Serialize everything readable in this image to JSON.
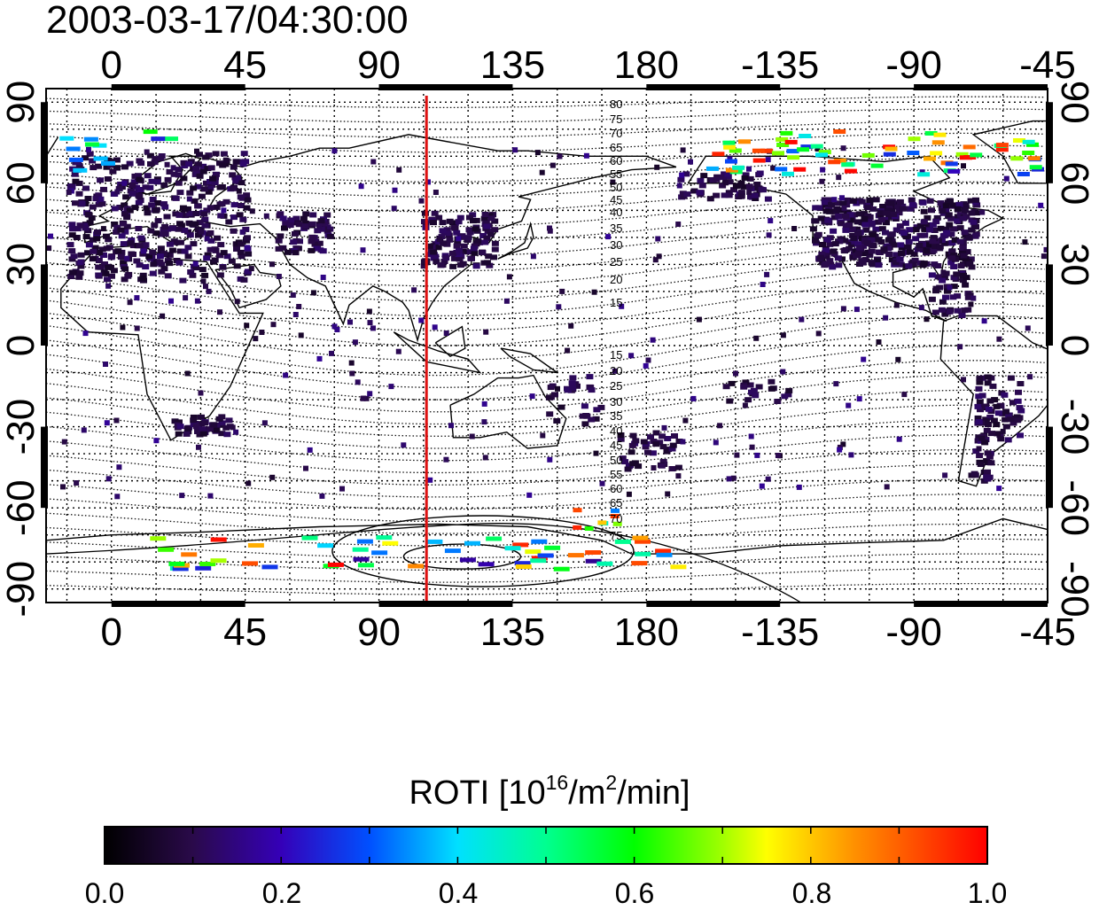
{
  "title": "2003-03-17/04:30:00",
  "axes": {
    "lon_labels": [
      "0",
      "45",
      "90",
      "135",
      "180",
      "-135",
      "-90",
      "-45"
    ],
    "lat_labels": [
      "90",
      "60",
      "30",
      "0",
      "-30",
      "-60",
      "-90"
    ],
    "lon_range": [
      -22,
      315
    ],
    "lat_range": [
      -95,
      95
    ]
  },
  "marker": {
    "type": "meridian",
    "longitude": 106,
    "color": "#dd1111"
  },
  "contours": {
    "north_labels": [
      "80",
      "75",
      "70",
      "65",
      "60",
      "55",
      "50",
      "45",
      "40",
      "35",
      "30",
      "25",
      "20",
      "15"
    ],
    "south_labels": [
      "15",
      "20",
      "25",
      "30",
      "35",
      "40",
      "45",
      "50",
      "55",
      "60",
      "65",
      "70",
      "75"
    ]
  },
  "colorbar": {
    "title_prefix": "ROTI  [10",
    "title_sup1": "16",
    "title_mid": "/m",
    "title_sup2": "2",
    "title_suffix": "/min]",
    "min": 0.0,
    "max": 1.0,
    "tick_labels": [
      "0.0",
      "0.2",
      "0.4",
      "0.6",
      "0.8",
      "1.0"
    ],
    "colormap": "rainbow (black - purple - blue - cyan - green - yellow - red)"
  },
  "colors": {
    "background": "#ffffff",
    "grid": "#000000",
    "coast": "#000000"
  }
}
